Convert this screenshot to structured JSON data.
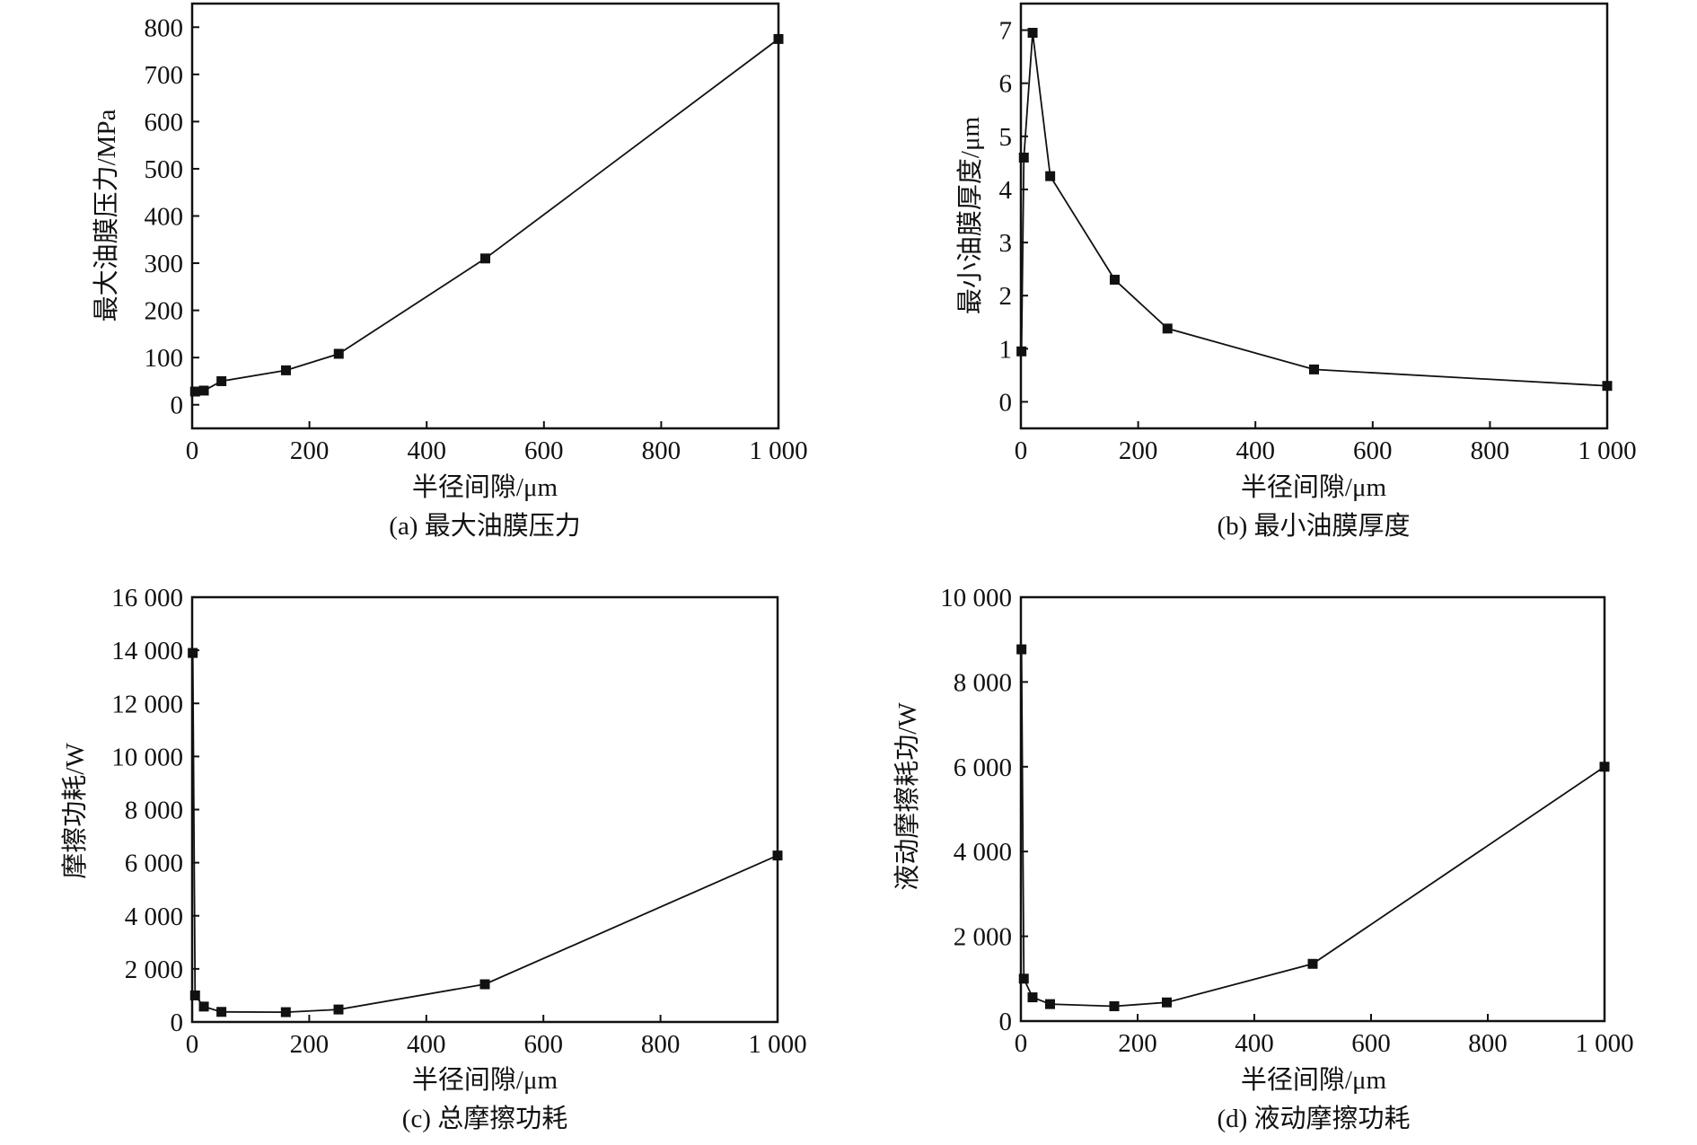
{
  "figure": {
    "panels": [
      {
        "id": "a",
        "caption": "(a) 最大油膜压力",
        "xlabel": "半径间隙/μm",
        "ylabel": "最大油膜压力/MPa"
      },
      {
        "id": "b",
        "caption": "(b) 最小油膜厚度",
        "xlabel": "半径间隙/μm",
        "ylabel": "最小油膜厚度/μm"
      },
      {
        "id": "c",
        "caption": "(c) 总摩擦功耗",
        "xlabel": "半径间隙/μm",
        "ylabel": "摩擦功耗/W"
      },
      {
        "id": "d",
        "caption": "(d) 液动摩擦功耗",
        "xlabel": "半径间隙/μm",
        "ylabel": "液动摩擦耗功/W"
      }
    ]
  },
  "chart_data": [
    {
      "type": "line",
      "title": "(a) 最大油膜压力",
      "xlabel": "半径间隙/μm",
      "ylabel": "最大油膜压力/MPa",
      "x": [
        5,
        20,
        50,
        160,
        250,
        500,
        1000
      ],
      "series": [
        {
          "name": "最大油膜压力",
          "values": [
            28,
            30,
            50,
            73,
            108,
            310,
            775
          ]
        }
      ],
      "xlim": [
        0,
        1000
      ],
      "ylim": [
        -50,
        850
      ],
      "xticks": [
        0,
        200,
        400,
        600,
        800,
        1000
      ],
      "xtick_labels": [
        "0",
        "200",
        "400",
        "600",
        "800",
        "1 000"
      ],
      "yticks": [
        0,
        100,
        200,
        300,
        400,
        500,
        600,
        700,
        800
      ],
      "ytick_labels": [
        "0",
        "100",
        "200",
        "300",
        "400",
        "500",
        "600",
        "700",
        "800"
      ],
      "marker": "square",
      "grid": false,
      "legend": null
    },
    {
      "type": "line",
      "title": "(b) 最小油膜厚度",
      "xlabel": "半径间隙/μm",
      "ylabel": "最小油膜厚度/μm",
      "x": [
        1,
        5,
        20,
        50,
        160,
        250,
        500,
        1000
      ],
      "series": [
        {
          "name": "最小油膜厚度",
          "values": [
            0.95,
            4.6,
            6.95,
            4.25,
            2.3,
            1.38,
            0.61,
            0.3
          ]
        }
      ],
      "xlim": [
        0,
        1000
      ],
      "ylim": [
        -0.5,
        7.5
      ],
      "xticks": [
        0,
        200,
        400,
        600,
        800,
        1000
      ],
      "xtick_labels": [
        "0",
        "200",
        "400",
        "600",
        "800",
        "1 000"
      ],
      "yticks": [
        0,
        1,
        2,
        3,
        4,
        5,
        6,
        7
      ],
      "ytick_labels": [
        "0",
        "1",
        "2",
        "3",
        "4",
        "5",
        "6",
        "7"
      ],
      "marker": "square",
      "grid": false,
      "legend": null
    },
    {
      "type": "line",
      "title": "(c) 总摩擦功耗",
      "xlabel": "半径间隙/μm",
      "ylabel": "摩擦功耗/W",
      "x": [
        1,
        5,
        20,
        50,
        160,
        250,
        500,
        1000
      ],
      "series": [
        {
          "name": "总摩擦功耗",
          "values": [
            13900,
            1000,
            580,
            380,
            370,
            470,
            1420,
            6270
          ]
        }
      ],
      "xlim": [
        0,
        1000
      ],
      "ylim": [
        0,
        16000
      ],
      "xticks": [
        0,
        200,
        400,
        600,
        800,
        1000
      ],
      "xtick_labels": [
        "0",
        "200",
        "400",
        "600",
        "800",
        "1 000"
      ],
      "yticks": [
        0,
        2000,
        4000,
        6000,
        8000,
        10000,
        12000,
        14000,
        16000
      ],
      "ytick_labels": [
        "0",
        "2 000",
        "4 000",
        "6 000",
        "8 000",
        "10 000",
        "12 000",
        "14 000",
        "16 000"
      ],
      "marker": "square",
      "grid": false,
      "legend": null
    },
    {
      "type": "line",
      "title": "(d) 液动摩擦功耗",
      "xlabel": "半径间隙/μm",
      "ylabel": "液动摩擦耗功/W",
      "x": [
        1,
        5,
        20,
        50,
        160,
        250,
        500,
        1000
      ],
      "series": [
        {
          "name": "液动摩擦功耗",
          "values": [
            8770,
            1000,
            560,
            400,
            350,
            440,
            1350,
            6000
          ]
        }
      ],
      "xlim": [
        0,
        1000
      ],
      "ylim": [
        0,
        10000
      ],
      "xticks": [
        0,
        200,
        400,
        600,
        800,
        1000
      ],
      "xtick_labels": [
        "0",
        "200",
        "400",
        "600",
        "800",
        "1 000"
      ],
      "yticks": [
        0,
        2000,
        4000,
        6000,
        8000,
        10000
      ],
      "ytick_labels": [
        "0",
        "2 000",
        "4 000",
        "6 000",
        "8 000",
        "10 000"
      ],
      "marker": "square",
      "grid": false,
      "legend": null
    }
  ]
}
